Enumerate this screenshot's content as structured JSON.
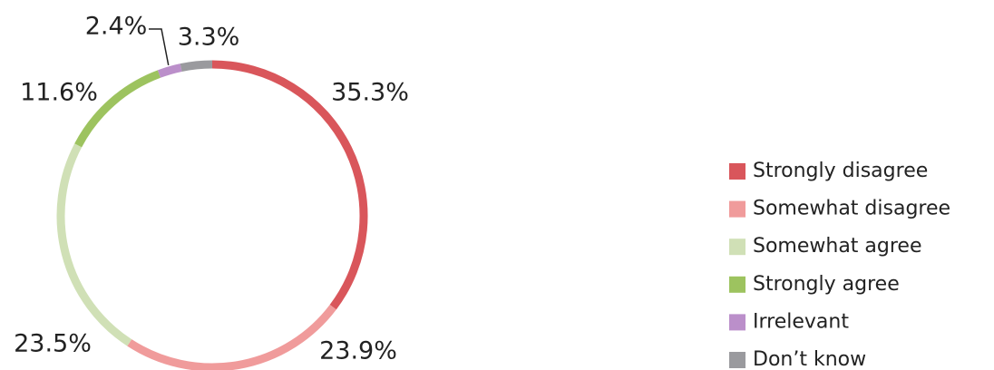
{
  "chart_data": {
    "type": "donut",
    "categories": [
      "Strongly disagree",
      "Somewhat disagree",
      "Somewhat agree",
      "Strongly agree",
      "Irrelevant",
      "Don’t know"
    ],
    "values": [
      35.3,
      23.9,
      23.5,
      11.6,
      2.4,
      3.3
    ],
    "value_labels": [
      "35.3%",
      "23.9%",
      "23.5%",
      "11.6%",
      "2.4%",
      "3.3%"
    ],
    "colors": [
      "#d9565b",
      "#f09b9b",
      "#d0e0b6",
      "#9dc35f",
      "#bb8fca",
      "#9a9a9e"
    ],
    "legend": "right"
  }
}
